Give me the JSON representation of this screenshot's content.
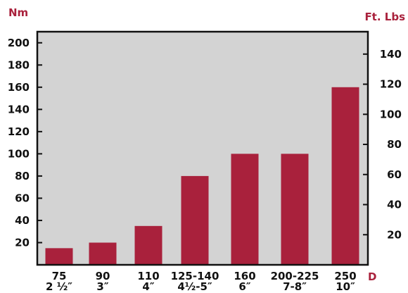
{
  "chart_data": {
    "type": "bar",
    "left_axis_unit": "Nm",
    "right_axis_unit": "Ft. Lbs",
    "x_axis_marker": "D",
    "categories": [
      {
        "top": "75",
        "bottom": "2 ½″"
      },
      {
        "top": "90",
        "bottom": "3″"
      },
      {
        "top": "110",
        "bottom": "4″"
      },
      {
        "top": "125-140",
        "bottom": "4½-5″"
      },
      {
        "top": "160",
        "bottom": "6″"
      },
      {
        "top": "200-225",
        "bottom": "7-8″"
      },
      {
        "top": "250",
        "bottom": "10″"
      }
    ],
    "values": [
      15,
      20,
      35,
      80,
      100,
      100,
      160
    ],
    "ylim": [
      0,
      210
    ],
    "y_ticks": [
      20,
      40,
      60,
      80,
      100,
      120,
      140,
      160,
      180,
      200
    ],
    "y2_ticks": [
      20,
      40,
      60,
      80,
      100,
      120,
      140
    ],
    "y2_ticks_in_nm": [
      27.12,
      54.24,
      81.36,
      108.48,
      135.58,
      162.7,
      189.82
    ],
    "colors": {
      "bar": "#a9213c",
      "plot_background": "#d3d3d3",
      "unit_label": "#a9213c",
      "axis": "#111111"
    }
  }
}
